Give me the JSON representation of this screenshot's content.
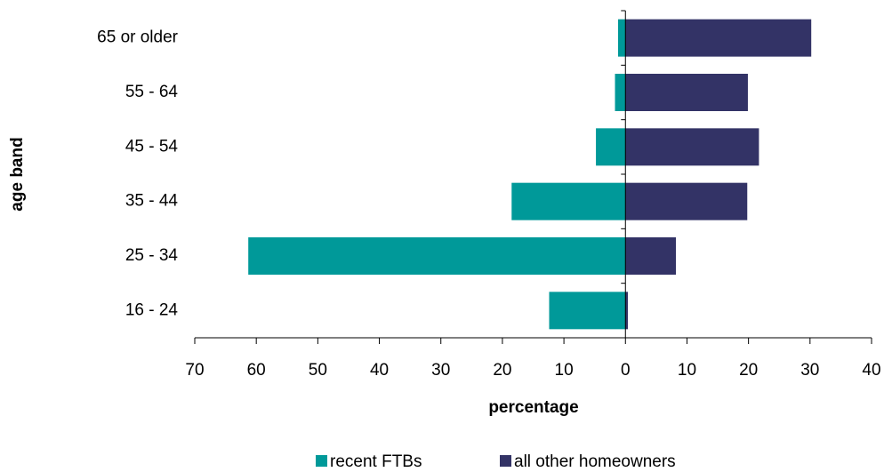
{
  "chart_data": {
    "type": "bar",
    "orientation": "horizontal",
    "x_label": "percentage",
    "y_label": "age band",
    "categories": [
      "16 - 24",
      "25 - 34",
      "35 - 44",
      "45 - 54",
      "55 - 64",
      "65 or older"
    ],
    "series": [
      {
        "name": "recent FTBs",
        "color": "#009999",
        "values": [
          -12.4,
          -61.3,
          -18.5,
          -4.8,
          -1.7,
          -1.2
        ]
      },
      {
        "name": "all other homeowners",
        "color": "#333366",
        "values": [
          0.4,
          8.2,
          19.8,
          21.7,
          19.9,
          30.2
        ]
      }
    ],
    "xlim": [
      -70,
      40
    ],
    "xticks": [
      {
        "value": -70,
        "label": "70"
      },
      {
        "value": -60,
        "label": "60"
      },
      {
        "value": -50,
        "label": "50"
      },
      {
        "value": -40,
        "label": "40"
      },
      {
        "value": -30,
        "label": "30"
      },
      {
        "value": -20,
        "label": "20"
      },
      {
        "value": -10,
        "label": "10"
      },
      0,
      10,
      20,
      30,
      40
    ],
    "legend": "bottom"
  }
}
